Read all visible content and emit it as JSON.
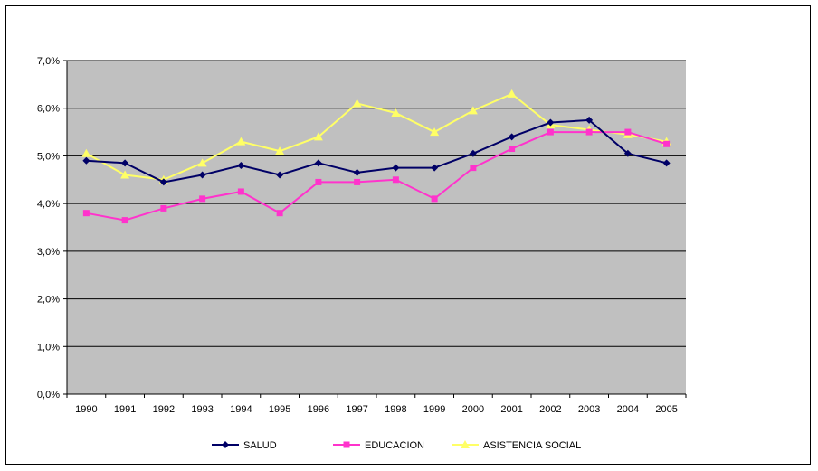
{
  "chart_data": {
    "type": "line",
    "title": "",
    "xlabel": "",
    "ylabel": "",
    "categories": [
      "1990",
      "1991",
      "1992",
      "1993",
      "1994",
      "1995",
      "1996",
      "1997",
      "1998",
      "1999",
      "2000",
      "2001",
      "2002",
      "2003",
      "2004",
      "2005"
    ],
    "ylim": [
      0,
      7
    ],
    "yticks": [
      0,
      1,
      2,
      3,
      4,
      5,
      6,
      7
    ],
    "ytick_labels": [
      "0,0%",
      "1,0%",
      "2,0%",
      "3,0%",
      "4,0%",
      "5,0%",
      "6,0%",
      "7,0%"
    ],
    "grid": true,
    "legend_position": "bottom",
    "plot_background": "#c0c0c0",
    "series": [
      {
        "name": "SALUD",
        "color": "#000066",
        "marker": "diamond",
        "values": [
          4.9,
          4.85,
          4.45,
          4.6,
          4.8,
          4.6,
          4.85,
          4.65,
          4.75,
          4.75,
          5.05,
          5.4,
          5.7,
          5.75,
          5.05,
          4.85
        ]
      },
      {
        "name": "EDUCACION",
        "color": "#ff33cc",
        "marker": "square",
        "values": [
          3.8,
          3.65,
          3.9,
          4.1,
          4.25,
          3.8,
          4.45,
          4.45,
          4.5,
          4.1,
          4.75,
          5.15,
          5.5,
          5.5,
          5.5,
          5.25
        ]
      },
      {
        "name": "ASISTENCIA SOCIAL",
        "color": "#ffff66",
        "marker": "triangle",
        "values": [
          5.05,
          4.6,
          4.5,
          4.85,
          5.3,
          5.1,
          5.4,
          6.1,
          5.9,
          5.5,
          5.95,
          6.3,
          5.65,
          5.55,
          5.45,
          5.3
        ]
      }
    ],
    "legend_labels": [
      "SALUD",
      "EDUCACION",
      "ASISTENCIA SOCIAL"
    ]
  }
}
